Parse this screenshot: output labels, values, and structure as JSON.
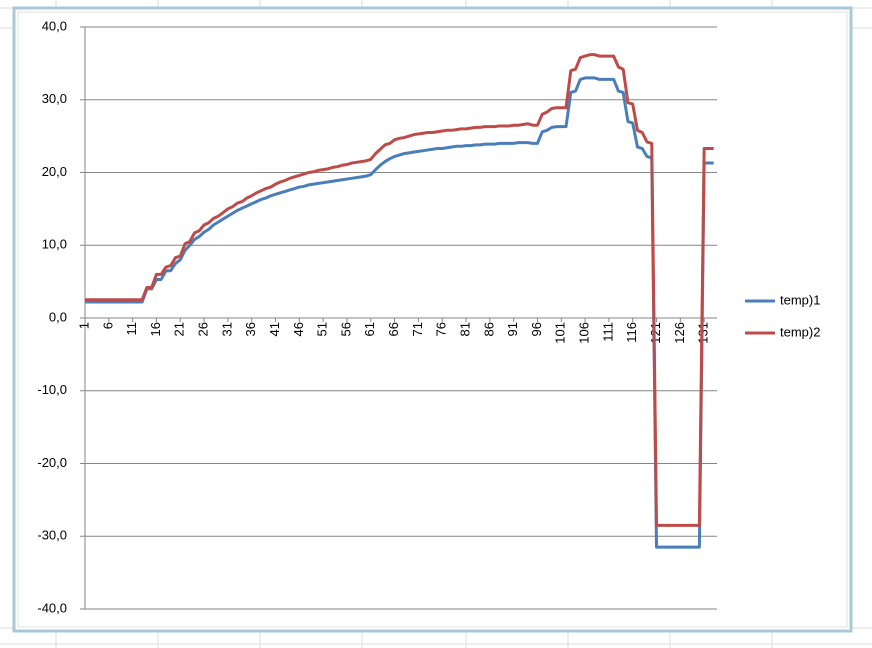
{
  "chart_data": {
    "type": "line",
    "categories": [
      1,
      null,
      null,
      null,
      null,
      6,
      null,
      null,
      null,
      null,
      11,
      null,
      null,
      null,
      null,
      16,
      null,
      null,
      null,
      null,
      21,
      null,
      null,
      null,
      null,
      26,
      null,
      null,
      null,
      null,
      31,
      null,
      null,
      null,
      null,
      36,
      null,
      null,
      null,
      null,
      41,
      null,
      null,
      null,
      null,
      46,
      null,
      null,
      null,
      null,
      51,
      null,
      null,
      null,
      null,
      56,
      null,
      null,
      null,
      null,
      61,
      null,
      null,
      null,
      null,
      66,
      null,
      null,
      null,
      null,
      71,
      null,
      null,
      null,
      null,
      76,
      null,
      null,
      null,
      null,
      81,
      null,
      null,
      null,
      null,
      86,
      null,
      null,
      null,
      null,
      91,
      null,
      null,
      null,
      null,
      96,
      null,
      null,
      null,
      null,
      101,
      null,
      null,
      null,
      null,
      106,
      null,
      null,
      null,
      null,
      111,
      null,
      null,
      null,
      null,
      116,
      null,
      null,
      null,
      null,
      121,
      null,
      null,
      null,
      null,
      126,
      null,
      null,
      null,
      null,
      131,
      null,
      null
    ],
    "series": [
      {
        "name": "temp)1",
        "color": "#4a7ebb",
        "values": [
          2.2,
          2.2,
          2.2,
          2.2,
          2.2,
          2.2,
          2.2,
          2.2,
          2.2,
          2.2,
          2.2,
          2.2,
          2.2,
          4.0,
          4.0,
          5.3,
          5.3,
          6.5,
          6.5,
          7.5,
          8.0,
          9.3,
          10.0,
          10.8,
          11.2,
          11.8,
          12.2,
          12.8,
          13.2,
          13.6,
          14.0,
          14.4,
          14.8,
          15.1,
          15.4,
          15.7,
          16.0,
          16.3,
          16.5,
          16.8,
          17.0,
          17.2,
          17.4,
          17.6,
          17.8,
          18.0,
          18.1,
          18.3,
          18.4,
          18.5,
          18.6,
          18.7,
          18.8,
          18.9,
          19.0,
          19.1,
          19.2,
          19.3,
          19.4,
          19.5,
          19.7,
          20.4,
          21.0,
          21.5,
          21.9,
          22.2,
          22.4,
          22.6,
          22.7,
          22.8,
          22.9,
          23.0,
          23.1,
          23.2,
          23.3,
          23.3,
          23.4,
          23.5,
          23.6,
          23.6,
          23.7,
          23.7,
          23.8,
          23.8,
          23.9,
          23.9,
          23.9,
          24.0,
          24.0,
          24.0,
          24.0,
          24.1,
          24.1,
          24.1,
          24.0,
          24.0,
          25.6,
          25.8,
          26.2,
          26.3,
          26.3,
          26.3,
          31.0,
          31.2,
          32.8,
          33.0,
          33.0,
          33.0,
          32.8,
          32.8,
          32.8,
          32.8,
          31.2,
          31.0,
          27.0,
          26.8,
          23.5,
          23.3,
          22.2,
          22.0,
          -31.5,
          -31.5,
          -31.5,
          -31.5,
          -31.5,
          -31.5,
          -31.5,
          -31.5,
          -31.5,
          -31.5,
          21.3,
          21.3,
          21.3
        ]
      },
      {
        "name": "temp)2",
        "color": "#be4b48",
        "values": [
          2.5,
          2.5,
          2.5,
          2.5,
          2.5,
          2.5,
          2.5,
          2.5,
          2.5,
          2.5,
          2.5,
          2.5,
          2.5,
          4.2,
          4.2,
          6.0,
          6.0,
          7.0,
          7.2,
          8.3,
          8.5,
          10.2,
          10.5,
          11.7,
          12.0,
          12.8,
          13.1,
          13.7,
          14.0,
          14.5,
          15.0,
          15.3,
          15.8,
          16.0,
          16.5,
          16.8,
          17.2,
          17.5,
          17.8,
          18.0,
          18.4,
          18.7,
          18.9,
          19.2,
          19.4,
          19.6,
          19.8,
          20.0,
          20.1,
          20.3,
          20.4,
          20.5,
          20.7,
          20.8,
          21.0,
          21.1,
          21.3,
          21.4,
          21.5,
          21.6,
          21.8,
          22.6,
          23.2,
          23.8,
          24.0,
          24.5,
          24.7,
          24.8,
          25.0,
          25.2,
          25.3,
          25.4,
          25.5,
          25.5,
          25.6,
          25.7,
          25.8,
          25.8,
          25.9,
          26.0,
          26.0,
          26.1,
          26.2,
          26.2,
          26.3,
          26.3,
          26.3,
          26.4,
          26.4,
          26.4,
          26.5,
          26.5,
          26.6,
          26.7,
          26.5,
          26.5,
          28.0,
          28.3,
          28.8,
          28.9,
          28.9,
          28.9,
          34.0,
          34.2,
          35.8,
          36.0,
          36.2,
          36.2,
          36.0,
          36.0,
          36.0,
          36.0,
          34.5,
          34.2,
          29.6,
          29.4,
          25.8,
          25.5,
          24.2,
          24.0,
          -28.5,
          -28.5,
          -28.5,
          -28.5,
          -28.5,
          -28.5,
          -28.5,
          -28.5,
          -28.5,
          -28.5,
          23.3,
          23.3,
          23.3
        ]
      }
    ],
    "ylim": [
      -40,
      40
    ],
    "yticks": [
      {
        "value": -40,
        "label": "-40,0"
      },
      {
        "value": -30,
        "label": "-30,0"
      },
      {
        "value": -20,
        "label": "-20,0"
      },
      {
        "value": -10,
        "label": "-10,0"
      },
      {
        "value": 0,
        "label": "0,0"
      },
      {
        "value": 10,
        "label": "10,0"
      },
      {
        "value": 20,
        "label": "20,0"
      },
      {
        "value": 30,
        "label": "30,0"
      },
      {
        "value": 40,
        "label": "40,0"
      }
    ],
    "grid": true,
    "legend": "right"
  }
}
